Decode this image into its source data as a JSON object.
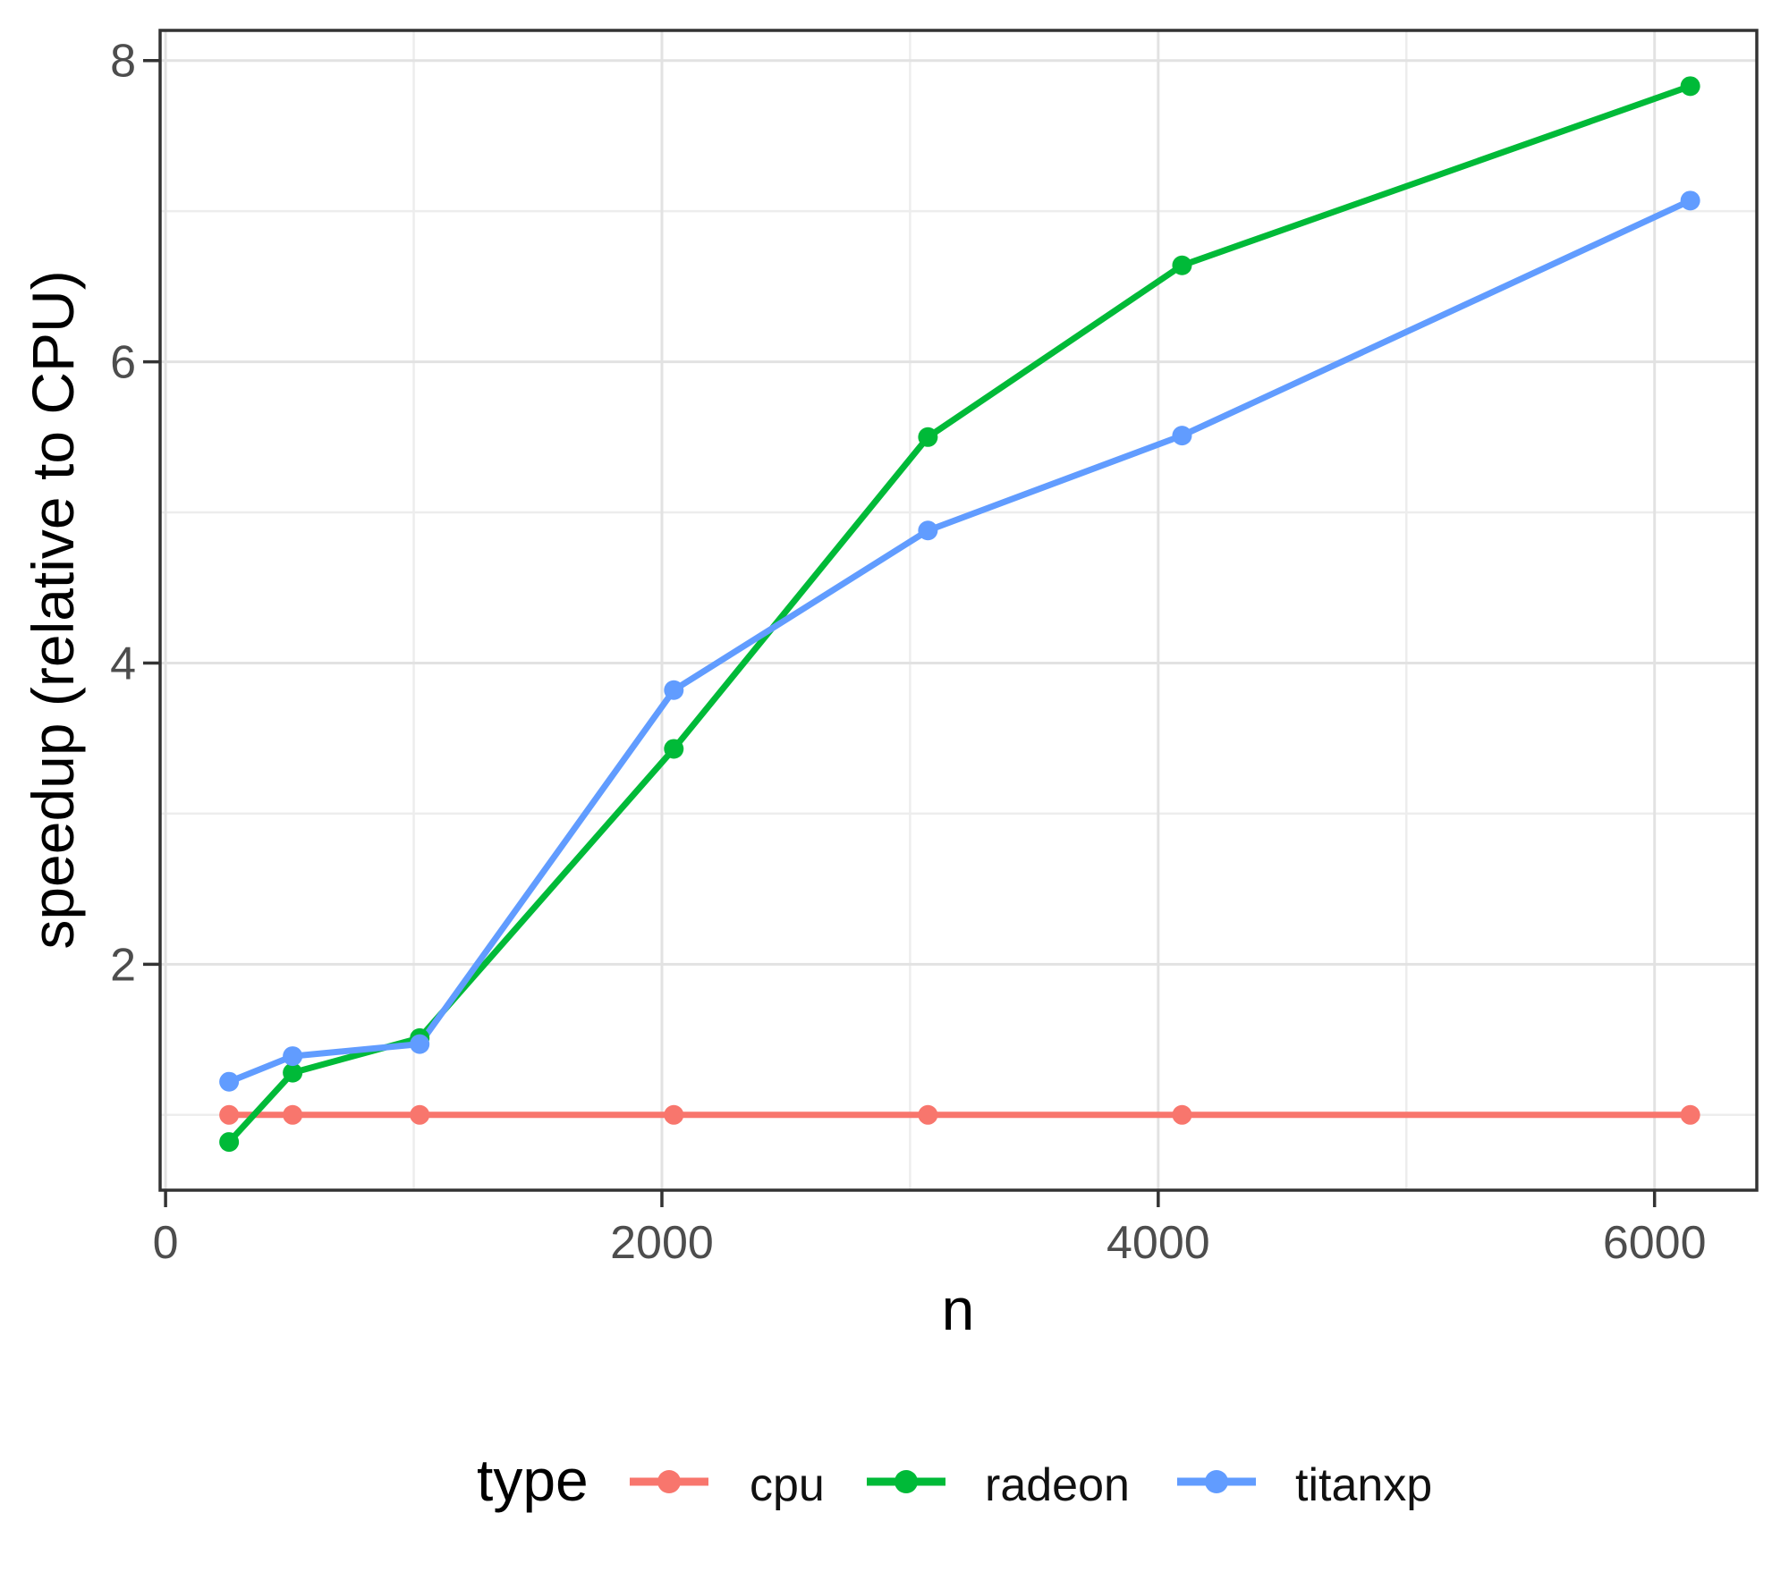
{
  "chart_data": {
    "type": "line",
    "title": "",
    "xlabel": "n",
    "ylabel": "speedup (relative to CPU)",
    "x": [
      256,
      512,
      1024,
      2048,
      3072,
      4096,
      6144
    ],
    "series": [
      {
        "name": "cpu",
        "color": "#F8766D",
        "values": [
          1.0,
          1.0,
          1.0,
          1.0,
          1.0,
          1.0,
          1.0
        ]
      },
      {
        "name": "radeon",
        "color": "#00BA38",
        "values": [
          0.82,
          1.28,
          1.51,
          3.43,
          5.5,
          6.64,
          7.83
        ]
      },
      {
        "name": "titanxp",
        "color": "#619CFF",
        "values": [
          1.22,
          1.39,
          1.47,
          3.82,
          4.88,
          5.51,
          7.07
        ]
      }
    ],
    "x_axis": {
      "ticks": [
        0,
        2000,
        4000,
        6000
      ],
      "tick_labels": [
        "0",
        "2000",
        "4000",
        "6000"
      ],
      "minor_ticks": [
        1000,
        3000,
        5000
      ],
      "range": [
        -22,
        6412
      ]
    },
    "y_axis": {
      "ticks": [
        2,
        4,
        6,
        8
      ],
      "tick_labels": [
        "2",
        "4",
        "6",
        "8"
      ],
      "minor_ticks": [
        1,
        3,
        5,
        7
      ],
      "range": [
        0.5,
        8.2
      ]
    },
    "grid": "on",
    "legend": {
      "title": "type",
      "position": "bottom",
      "entries": [
        "cpu",
        "radeon",
        "titanxp"
      ]
    },
    "colors": {
      "background": "#FFFFFF",
      "panel_background": "#FFFFFF",
      "panel_border": "#333333",
      "grid_major": "#E2E2E2",
      "grid_minor": "#EDEDED",
      "tick_mark": "#333333",
      "tick_label": "#4D4D4D",
      "axis_title": "#000000"
    }
  }
}
